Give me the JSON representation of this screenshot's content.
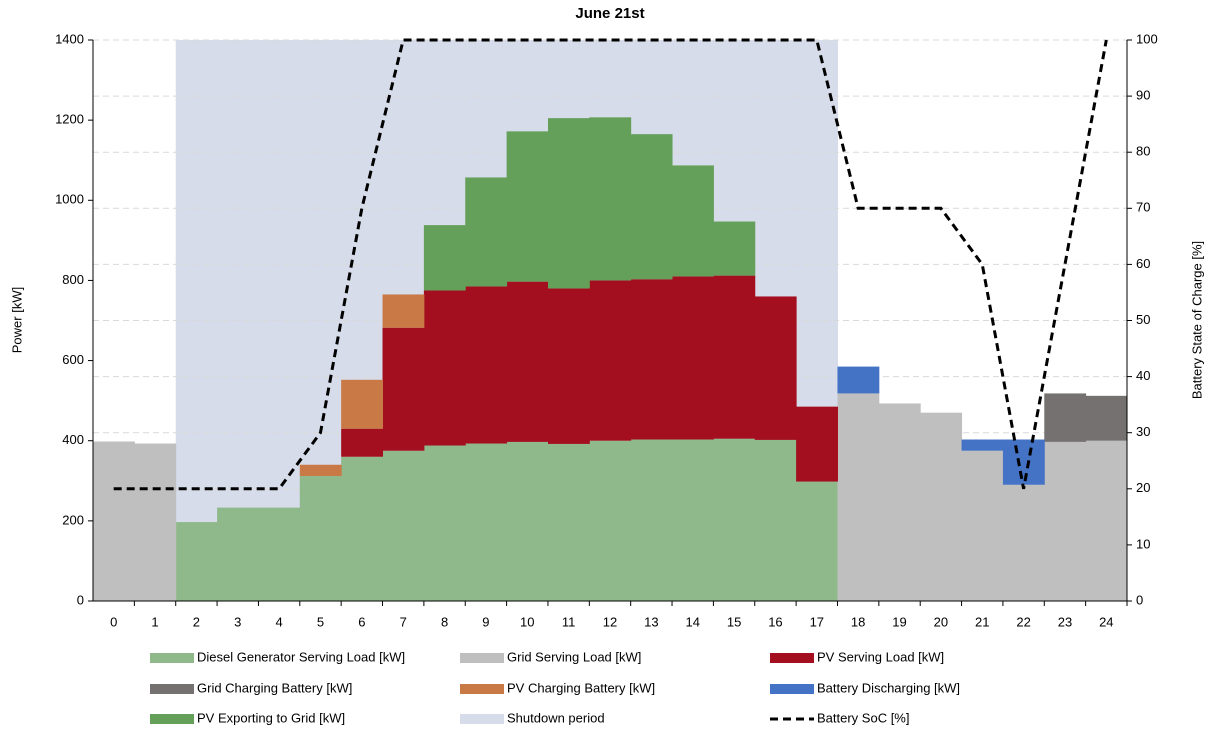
{
  "chart_data": {
    "type": "bar",
    "stacked": true,
    "title": "June 21st",
    "ylabel": "Power [kW]",
    "y2label": "Battery State of Charge [%]",
    "categories": [
      0,
      1,
      2,
      3,
      4,
      5,
      6,
      7,
      8,
      9,
      10,
      11,
      12,
      13,
      14,
      15,
      16,
      17,
      18,
      19,
      20,
      21,
      22,
      23,
      24
    ],
    "ylim": [
      0,
      1400
    ],
    "yticks": [
      0,
      200,
      400,
      600,
      800,
      1000,
      1200,
      1400
    ],
    "y2lim": [
      0,
      100
    ],
    "y2ticks": [
      0,
      10,
      20,
      30,
      40,
      50,
      60,
      70,
      80,
      90,
      100
    ],
    "grid": true,
    "legend": "bottom",
    "series": [
      {
        "name": "Diesel Generator Serving Load [kW]",
        "type": "bar",
        "color": "#8fb98b",
        "values": [
          0,
          0,
          197,
          233,
          233,
          312,
          360,
          375,
          388,
          393,
          397,
          392,
          400,
          403,
          403,
          405,
          402,
          298,
          0,
          0,
          0,
          0,
          0,
          0,
          0
        ]
      },
      {
        "name": "Grid Serving Load [kW]",
        "type": "bar",
        "color": "#bfbfbf",
        "values": [
          398,
          393,
          0,
          0,
          0,
          0,
          0,
          0,
          0,
          0,
          0,
          0,
          0,
          0,
          0,
          0,
          0,
          0,
          518,
          493,
          470,
          375,
          290,
          397,
          400
        ]
      },
      {
        "name": "PV Serving Load [kW]",
        "type": "bar",
        "color": "#a30f1e",
        "values": [
          0,
          0,
          0,
          0,
          0,
          0,
          70,
          307,
          387,
          392,
          400,
          388,
          400,
          400,
          407,
          407,
          358,
          187,
          0,
          0,
          0,
          0,
          0,
          0,
          0
        ]
      },
      {
        "name": "Grid Charging Battery [kW]",
        "type": "bar",
        "color": "#767171",
        "values": [
          0,
          0,
          0,
          0,
          0,
          0,
          0,
          0,
          0,
          0,
          0,
          0,
          0,
          0,
          0,
          0,
          0,
          0,
          0,
          0,
          0,
          0,
          0,
          121,
          112
        ]
      },
      {
        "name": "PV Charging Battery [kW]",
        "type": "bar",
        "color": "#c97945",
        "values": [
          0,
          0,
          0,
          0,
          0,
          28,
          122,
          83,
          0,
          0,
          0,
          0,
          0,
          0,
          0,
          0,
          0,
          0,
          0,
          0,
          0,
          0,
          0,
          0,
          0
        ]
      },
      {
        "name": "Battery Discharging [kW]",
        "type": "bar",
        "color": "#4472c4",
        "values": [
          0,
          0,
          0,
          0,
          0,
          0,
          0,
          0,
          0,
          0,
          0,
          0,
          0,
          0,
          0,
          0,
          0,
          0,
          67,
          0,
          0,
          28,
          113,
          0,
          0
        ]
      },
      {
        "name": "PV Exporting to Grid [kW]",
        "type": "bar",
        "color": "#64a05a",
        "values": [
          0,
          0,
          0,
          0,
          0,
          0,
          0,
          0,
          163,
          272,
          375,
          425,
          407,
          362,
          277,
          135,
          0,
          0,
          0,
          0,
          0,
          0,
          0,
          0,
          0
        ]
      },
      {
        "name": "Shutdown period",
        "type": "area",
        "color": "#d6dce9",
        "values": [
          null,
          null,
          1400,
          1400,
          1400,
          1400,
          1400,
          1400,
          1400,
          1400,
          1400,
          1400,
          1400,
          1400,
          1400,
          1400,
          1400,
          1400,
          null,
          null,
          null,
          null,
          null,
          null,
          null
        ]
      },
      {
        "name": "Battery SoC [%]",
        "type": "line",
        "axis": "y2",
        "color": "#000000",
        "values": [
          20,
          20,
          20,
          20,
          20,
          30,
          70,
          100,
          100,
          100,
          100,
          100,
          100,
          100,
          100,
          100,
          100,
          100,
          70,
          70,
          70,
          60,
          20,
          60,
          100
        ]
      }
    ]
  }
}
